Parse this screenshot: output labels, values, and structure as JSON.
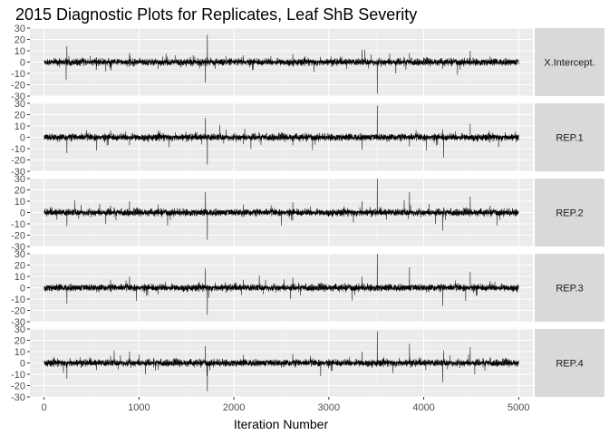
{
  "chart_data": {
    "type": "line",
    "title": "2015 Diagnostic Plots for Replicates, Leaf ShB Severity",
    "xlabel": "Iteration Number",
    "ylabel": "",
    "xlim": [
      -150,
      5150
    ],
    "ylim": [
      -30,
      30
    ],
    "x_ticks": [
      0,
      1000,
      2000,
      3000,
      4000,
      5000
    ],
    "y_ticks": [
      -30,
      -20,
      -10,
      0,
      10,
      20,
      30
    ],
    "grid": true,
    "iterations": 5000,
    "baseline_noise": 1.4,
    "panels": [
      {
        "label": "X.Intercept.",
        "spikes": [
          [
            240,
            14
          ],
          [
            700,
            -6
          ],
          [
            900,
            8
          ],
          [
            1200,
            -6
          ],
          [
            1380,
            6
          ],
          [
            1700,
            -18
          ],
          [
            1720,
            24
          ],
          [
            2100,
            6
          ],
          [
            2620,
            7
          ],
          [
            3350,
            11
          ],
          [
            3510,
            -28
          ],
          [
            3850,
            8
          ],
          [
            4200,
            -6
          ],
          [
            4490,
            10
          ],
          [
            4700,
            5
          ]
        ]
      },
      {
        "label": "REP.1",
        "spikes": [
          [
            240,
            -14
          ],
          [
            700,
            6
          ],
          [
            900,
            -7
          ],
          [
            1200,
            6
          ],
          [
            1700,
            17
          ],
          [
            1720,
            -24
          ],
          [
            2100,
            -6
          ],
          [
            2620,
            -7
          ],
          [
            3350,
            -11
          ],
          [
            3510,
            28
          ],
          [
            3850,
            -8
          ],
          [
            4200,
            7
          ],
          [
            4210,
            -18
          ],
          [
            4490,
            12
          ],
          [
            4700,
            -5
          ]
        ]
      },
      {
        "label": "REP.2",
        "spikes": [
          [
            240,
            -12
          ],
          [
            700,
            6
          ],
          [
            900,
            10
          ],
          [
            1200,
            7
          ],
          [
            1700,
            18
          ],
          [
            1720,
            -24
          ],
          [
            2100,
            7
          ],
          [
            2620,
            9
          ],
          [
            3350,
            10
          ],
          [
            3510,
            30
          ],
          [
            3850,
            18
          ],
          [
            4200,
            -16
          ],
          [
            4490,
            14
          ],
          [
            4700,
            6
          ]
        ]
      },
      {
        "label": "REP.3",
        "spikes": [
          [
            240,
            -14
          ],
          [
            700,
            7
          ],
          [
            900,
            10
          ],
          [
            1200,
            -6
          ],
          [
            1700,
            17
          ],
          [
            1720,
            -24
          ],
          [
            2100,
            7
          ],
          [
            2620,
            9
          ],
          [
            3350,
            10
          ],
          [
            3510,
            30
          ],
          [
            3850,
            18
          ],
          [
            4200,
            -16
          ],
          [
            4490,
            14
          ],
          [
            4700,
            6
          ]
        ]
      },
      {
        "label": "REP.4",
        "spikes": [
          [
            240,
            -14
          ],
          [
            700,
            6
          ],
          [
            900,
            10
          ],
          [
            1200,
            -6
          ],
          [
            1700,
            15
          ],
          [
            1720,
            -25
          ],
          [
            2100,
            7
          ],
          [
            2620,
            8
          ],
          [
            3350,
            10
          ],
          [
            3510,
            28
          ],
          [
            3850,
            17
          ],
          [
            4200,
            -17
          ],
          [
            4490,
            14
          ],
          [
            4700,
            5
          ]
        ]
      }
    ]
  }
}
